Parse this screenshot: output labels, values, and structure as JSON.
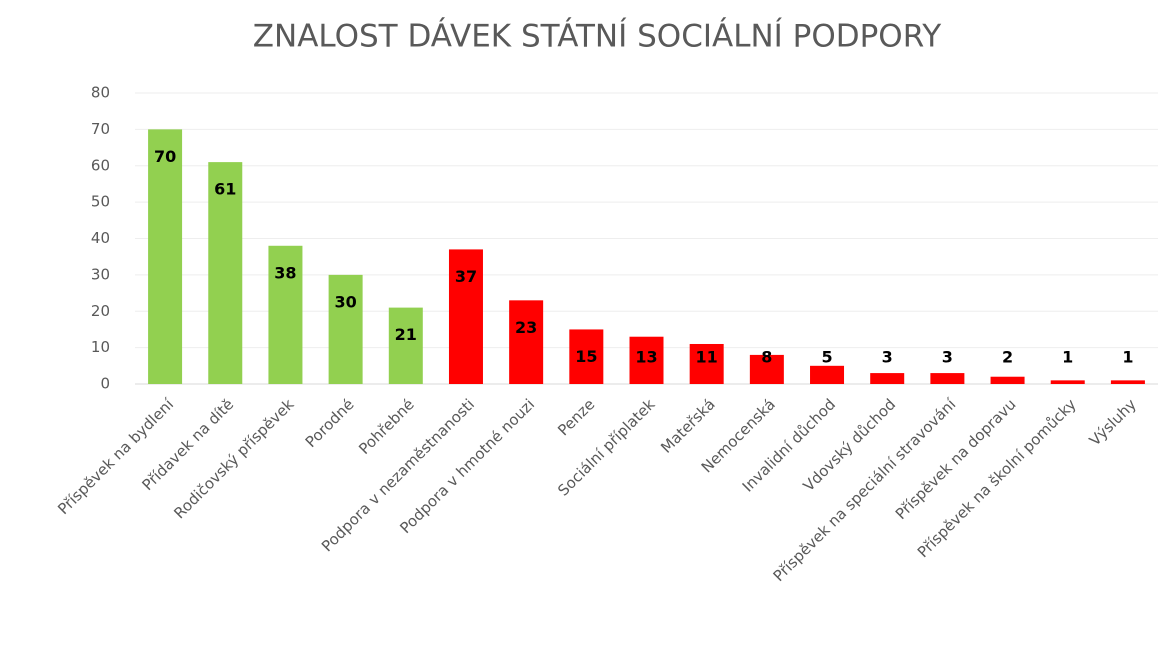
{
  "chart_data": {
    "type": "bar",
    "title": "ZNALOST DÁVEK STÁTNÍ SOCIÁLNÍ PODPORY",
    "categories": [
      "Příspěvek na bydlení",
      "Přídavek na dítě",
      "Rodičovský příspěvek",
      "Porodné",
      "Pohřebné",
      "Podpora v nezaměstnanosti",
      "Podpora v hmotné nouzi",
      "Penze",
      "Sociální příplatek",
      "Mateřská",
      "Nemocenská",
      "Invalidní důchod",
      "Vdovský důchod",
      "Příspěvek na speciální stravování",
      "Příspěvek na dopravu",
      "Příspěvek na školní pomůcky",
      "Výsluhy"
    ],
    "values": [
      70,
      61,
      38,
      30,
      21,
      37,
      23,
      15,
      13,
      11,
      8,
      5,
      3,
      3,
      2,
      1,
      1
    ],
    "colors": [
      "#92d050",
      "#92d050",
      "#92d050",
      "#92d050",
      "#92d050",
      "#ff0000",
      "#ff0000",
      "#ff0000",
      "#ff0000",
      "#ff0000",
      "#ff0000",
      "#ff0000",
      "#ff0000",
      "#ff0000",
      "#ff0000",
      "#ff0000",
      "#ff0000"
    ],
    "ylim": [
      0,
      80
    ],
    "yticks": [
      0,
      10,
      20,
      30,
      40,
      50,
      60,
      70,
      80
    ],
    "grid": true
  }
}
